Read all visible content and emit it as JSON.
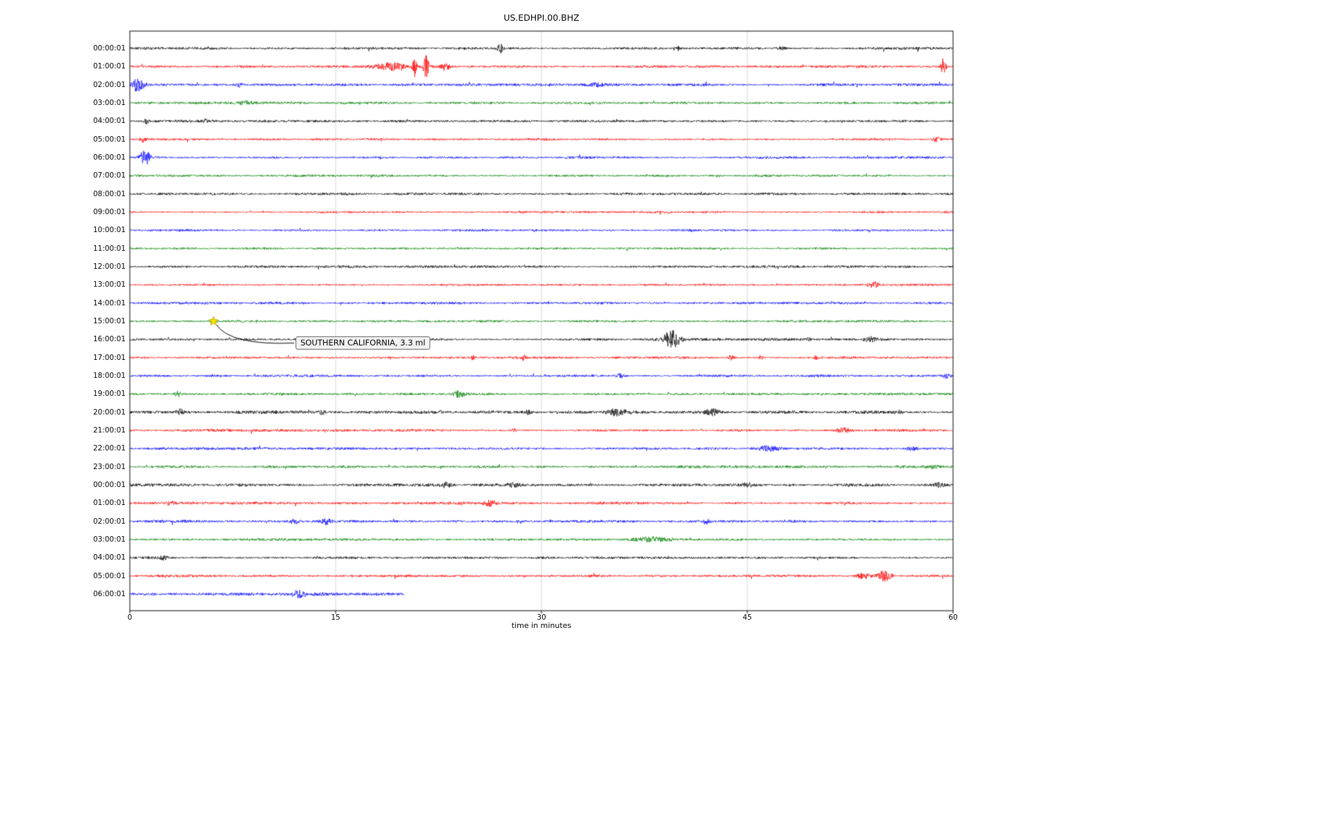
{
  "title": "US.EDHPI.00.BHZ",
  "xlabel": "time in minutes",
  "annotation": {
    "text": "SOUTHERN CALIFORNIA, 3.3 ml"
  },
  "chart_data": {
    "type": "line",
    "subtype": "seismogram-dayplot",
    "title": "US.EDHPI.00.BHZ",
    "xlabel": "time in minutes",
    "xlim": [
      0,
      60
    ],
    "xticks": [
      0,
      15,
      30,
      45,
      60
    ],
    "grid": "vertical gridlines at 15, 30, 45",
    "legend": "none",
    "row_colors_cycle": [
      "#000000",
      "#ff0000",
      "#0000ff",
      "#008000"
    ],
    "event_star": {
      "row": 15,
      "minute": 6.1,
      "color": "#ffe600"
    },
    "rows": [
      {
        "label": "00:00:01",
        "color": "#000000",
        "base": 1.5,
        "end": 60,
        "events": [
          [
            27,
            6,
            0.15
          ],
          [
            40,
            3,
            0.1
          ],
          [
            47.5,
            2.5,
            0.2
          ]
        ]
      },
      {
        "label": "01:00:01",
        "color": "#ff0000",
        "base": 1.5,
        "end": 60,
        "events": [
          [
            19,
            5,
            0.8
          ],
          [
            20.8,
            14,
            0.12
          ],
          [
            21.6,
            15,
            0.15
          ],
          [
            23,
            6,
            0.2
          ],
          [
            59.3,
            12,
            0.12
          ]
        ]
      },
      {
        "label": "02:00:01",
        "color": "#0000ff",
        "base": 1.5,
        "end": 60,
        "events": [
          [
            0.6,
            10,
            0.3
          ],
          [
            8,
            3,
            0.15
          ],
          [
            34,
            2,
            0.5
          ]
        ]
      },
      {
        "label": "03:00:01",
        "color": "#008000",
        "base": 1.4,
        "end": 60,
        "events": [
          [
            8.5,
            2.5,
            0.3
          ]
        ]
      },
      {
        "label": "04:00:01",
        "color": "#000000",
        "base": 1.4,
        "end": 60,
        "events": [
          [
            1.2,
            5,
            0.1
          ],
          [
            5.5,
            2,
            0.1
          ]
        ]
      },
      {
        "label": "05:00:01",
        "color": "#ff0000",
        "base": 1.4,
        "end": 60,
        "events": [
          [
            1,
            4,
            0.15
          ],
          [
            58.8,
            4,
            0.2
          ]
        ]
      },
      {
        "label": "06:00:01",
        "color": "#0000ff",
        "base": 1.4,
        "end": 60,
        "events": [
          [
            1.1,
            11,
            0.25
          ]
        ]
      },
      {
        "label": "07:00:01",
        "color": "#008000",
        "base": 1.4,
        "end": 60,
        "events": []
      },
      {
        "label": "08:00:01",
        "color": "#000000",
        "base": 1.5,
        "end": 60,
        "events": []
      },
      {
        "label": "09:00:01",
        "color": "#ff0000",
        "base": 1.3,
        "end": 60,
        "events": []
      },
      {
        "label": "10:00:01",
        "color": "#0000ff",
        "base": 1.3,
        "end": 60,
        "events": []
      },
      {
        "label": "11:00:01",
        "color": "#008000",
        "base": 1.3,
        "end": 60,
        "events": []
      },
      {
        "label": "12:00:01",
        "color": "#000000",
        "base": 1.4,
        "end": 60,
        "events": []
      },
      {
        "label": "13:00:01",
        "color": "#ff0000",
        "base": 1.3,
        "end": 60,
        "events": [
          [
            54.2,
            5,
            0.25
          ]
        ]
      },
      {
        "label": "14:00:01",
        "color": "#0000ff",
        "base": 1.4,
        "end": 60,
        "events": []
      },
      {
        "label": "15:00:01",
        "color": "#008000",
        "base": 1.4,
        "end": 60,
        "events": [
          [
            6.1,
            3,
            0.15
          ]
        ]
      },
      {
        "label": "16:00:01",
        "color": "#000000",
        "base": 1.5,
        "end": 60,
        "events": [
          [
            39.5,
            13,
            0.4
          ],
          [
            49.5,
            2.5,
            0.1
          ],
          [
            54,
            3,
            0.3
          ]
        ]
      },
      {
        "label": "17:00:01",
        "color": "#ff0000",
        "base": 1.4,
        "end": 60,
        "events": [
          [
            25,
            3,
            0.1
          ],
          [
            28.7,
            3.5,
            0.1
          ],
          [
            43.8,
            3.5,
            0.15
          ],
          [
            46,
            3,
            0.1
          ],
          [
            50,
            3,
            0.1
          ]
        ]
      },
      {
        "label": "18:00:01",
        "color": "#0000ff",
        "base": 1.4,
        "end": 60,
        "events": [
          [
            35.7,
            3,
            0.2
          ],
          [
            59.5,
            3,
            0.2
          ]
        ]
      },
      {
        "label": "19:00:01",
        "color": "#008000",
        "base": 1.4,
        "end": 60,
        "events": [
          [
            3.5,
            3.5,
            0.15
          ],
          [
            24,
            4.5,
            0.3
          ]
        ]
      },
      {
        "label": "20:00:01",
        "color": "#000000",
        "base": 1.8,
        "end": 60,
        "events": [
          [
            3.7,
            3.5,
            0.2
          ],
          [
            14,
            2.5,
            0.15
          ],
          [
            29,
            2.5,
            0.2
          ],
          [
            35.5,
            4,
            0.5
          ],
          [
            42.5,
            4,
            0.4
          ],
          [
            56,
            2.5,
            0.2
          ]
        ]
      },
      {
        "label": "21:00:01",
        "color": "#ff0000",
        "base": 1.5,
        "end": 60,
        "events": [
          [
            28,
            3,
            0.15
          ],
          [
            52,
            4,
            0.4
          ]
        ]
      },
      {
        "label": "22:00:01",
        "color": "#0000ff",
        "base": 1.5,
        "end": 60,
        "events": [
          [
            46.5,
            3.5,
            0.6
          ],
          [
            57,
            2.5,
            0.3
          ]
        ]
      },
      {
        "label": "23:00:01",
        "color": "#008000",
        "base": 1.5,
        "end": 60,
        "events": [
          [
            58.5,
            3,
            0.4
          ]
        ]
      },
      {
        "label": "00:00:01",
        "color": "#000000",
        "base": 1.8,
        "end": 60,
        "events": [
          [
            23,
            3.5,
            0.3
          ],
          [
            28,
            3.5,
            0.3
          ],
          [
            45,
            2.5,
            0.3
          ],
          [
            59,
            3,
            0.2
          ]
        ]
      },
      {
        "label": "01:00:01",
        "color": "#ff0000",
        "base": 1.5,
        "end": 60,
        "events": [
          [
            3,
            2.5,
            0.2
          ],
          [
            26.3,
            4.5,
            0.3
          ]
        ]
      },
      {
        "label": "02:00:01",
        "color": "#0000ff",
        "base": 1.5,
        "end": 60,
        "events": [
          [
            12,
            3.5,
            0.25
          ],
          [
            14.3,
            4.5,
            0.25
          ],
          [
            42,
            4,
            0.15
          ]
        ]
      },
      {
        "label": "03:00:01",
        "color": "#008000",
        "base": 1.5,
        "end": 60,
        "events": [
          [
            38,
            2.5,
            1.0
          ]
        ]
      },
      {
        "label": "04:00:01",
        "color": "#000000",
        "base": 1.4,
        "end": 60,
        "events": [
          [
            2.5,
            2.5,
            0.2
          ]
        ]
      },
      {
        "label": "05:00:01",
        "color": "#ff0000",
        "base": 1.5,
        "end": 60,
        "events": [
          [
            53.5,
            4,
            0.4
          ],
          [
            55,
            8,
            0.35
          ]
        ]
      },
      {
        "label": "06:00:01",
        "color": "#0000ff",
        "base": 1.8,
        "end": 20,
        "events": [
          [
            12.3,
            4,
            0.3
          ]
        ]
      }
    ]
  }
}
